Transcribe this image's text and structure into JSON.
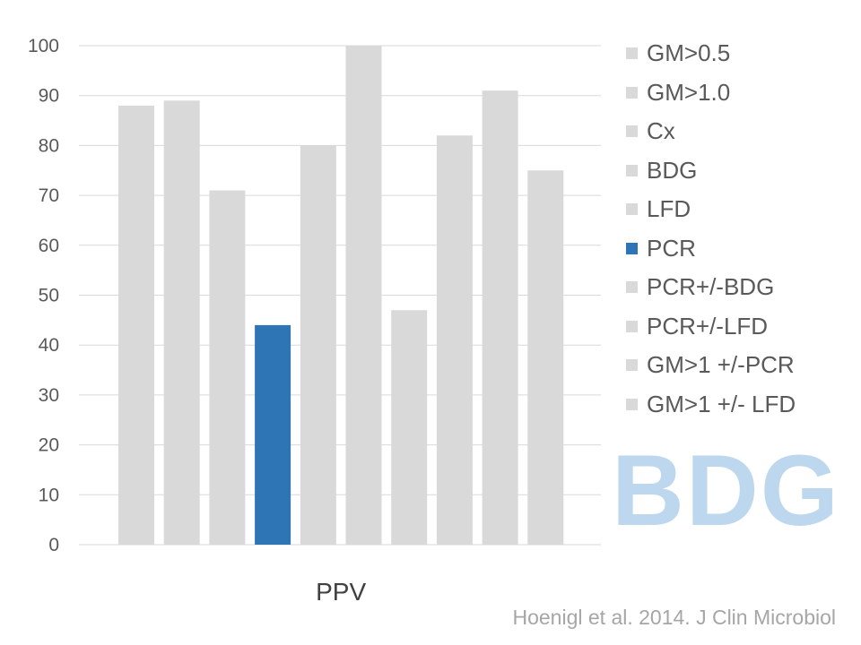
{
  "chart_data": {
    "type": "bar",
    "categories": [
      "PPV"
    ],
    "series": [
      {
        "name": "GM>0.5",
        "values": [
          88
        ]
      },
      {
        "name": "GM>1.0",
        "values": [
          89
        ]
      },
      {
        "name": "Cx",
        "values": [
          71
        ]
      },
      {
        "name": "BDG",
        "values": [
          44
        ]
      },
      {
        "name": "LFD",
        "values": [
          80
        ]
      },
      {
        "name": "PCR",
        "values": [
          100
        ]
      },
      {
        "name": "PCR+/-BDG",
        "values": [
          47
        ]
      },
      {
        "name": "PCR+/-LFD",
        "values": [
          82
        ]
      },
      {
        "name": "GM>1 +/-PCR",
        "values": [
          91
        ]
      },
      {
        "name": "GM>1 +/- LFD",
        "values": [
          75
        ]
      }
    ],
    "ylim": [
      0,
      100
    ],
    "yticks": [
      0,
      10,
      20,
      30,
      40,
      50,
      60,
      70,
      80,
      90,
      100
    ],
    "grid": true,
    "legend_position": "right",
    "legend_items": [
      "GM>0.5",
      "GM>1.0",
      "Cx",
      "BDG",
      "LFD",
      "PCR",
      "PCR+/-BDG",
      "PCR+/-LFD",
      "GM>1 +/-PCR",
      "GM>1 +/- LFD"
    ],
    "highlighted_bar_index": 3,
    "highlighted_legend_index": 5,
    "colors": {
      "bar": "#d9d9d9",
      "highlight": "#2e75b6",
      "grid": "#d9d9d9"
    }
  },
  "watermark_text": "BDG",
  "citation": "Hoenigl et al. 2014. J Clin Microbiol"
}
